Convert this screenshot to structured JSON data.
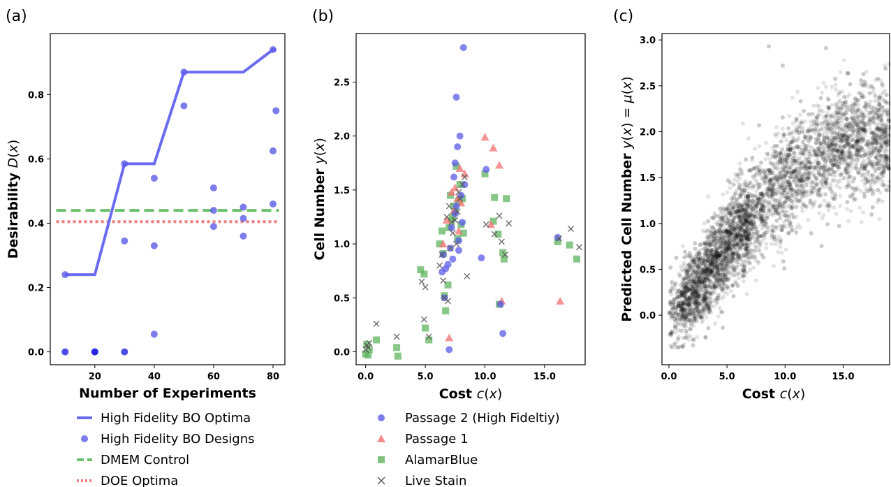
{
  "chart_data": [
    {
      "panel": "(a)",
      "type": "line",
      "xlabel": "Number of Experiments",
      "ylabel": "Desirability D(x)",
      "xlim": [
        5,
        84
      ],
      "ylim": [
        -0.04,
        0.99
      ],
      "xticks": [
        20,
        40,
        60,
        80
      ],
      "yticks": [
        0.0,
        0.2,
        0.4,
        0.6,
        0.8
      ],
      "ytick_labels": [
        "0.0",
        "0.2",
        "0.4",
        "0.6",
        "0.8"
      ],
      "grid": false,
      "legend_position": "below",
      "colors": {
        "bo": "#6b6bf0",
        "dmem": "#6abf6a",
        "doe": "#f08080",
        "bo_point": "#5b5be8",
        "bo_zero": "#1f1fe0"
      },
      "series": [
        {
          "name": "High Fidelity BO Optima",
          "kind": "line",
          "x": [
            10,
            20,
            30,
            40,
            50,
            60,
            70,
            80,
            81
          ],
          "y": [
            0.24,
            0.24,
            0.585,
            0.585,
            0.87,
            0.87,
            0.87,
            0.94,
            0.94
          ]
        },
        {
          "name": "High Fidelity BO Designs",
          "kind": "scatter",
          "x": [
            10,
            10,
            20,
            20,
            30,
            30,
            30,
            40,
            40,
            40,
            50,
            50,
            60,
            60,
            60,
            70,
            70,
            70,
            80,
            80,
            80,
            81
          ],
          "y": [
            0.24,
            0.0,
            0.0,
            0.0,
            0.585,
            0.345,
            0.0,
            0.54,
            0.33,
            0.055,
            0.87,
            0.765,
            0.51,
            0.44,
            0.39,
            0.36,
            0.45,
            0.415,
            0.94,
            0.625,
            0.46,
            0.75
          ]
        },
        {
          "name": "DMEM Control",
          "kind": "hline",
          "x": [
            7,
            82
          ],
          "y": [
            0.44,
            0.44
          ]
        },
        {
          "name": "DOE Optima",
          "kind": "hline",
          "x": [
            7,
            82
          ],
          "y": [
            0.405,
            0.405
          ]
        }
      ]
    },
    {
      "panel": "(b)",
      "type": "scatter",
      "xlabel": "Cost c(x)",
      "ylabel": "Cell Number y(x)",
      "xlim": [
        -0.8,
        18.4
      ],
      "ylim": [
        -0.12,
        2.95
      ],
      "xticks": [
        0.0,
        5.0,
        10.0,
        15.0
      ],
      "xtick_labels": [
        "0.0",
        "5.0",
        "10.0",
        "15.0"
      ],
      "yticks": [
        0.0,
        0.5,
        1.0,
        1.5,
        2.0,
        2.5
      ],
      "ytick_labels": [
        "0.0",
        "0.5",
        "1.0",
        "1.5",
        "2.0",
        "2.5"
      ],
      "grid": false,
      "legend_position": "below",
      "colors": {
        "passage2": "#5b5be8",
        "passage1": "#f07070",
        "alamar": "#5fb45f",
        "live": "#555555"
      },
      "series": [
        {
          "name": "Passage 2 (High Fideltiy)",
          "marker": "circle",
          "x": [
            8.2,
            7.6,
            7.9,
            7.7,
            7.5,
            6.4,
            7.1,
            7.3,
            6.9,
            7.0,
            6.6,
            6.5,
            7.8,
            8.3,
            8.0,
            9.7,
            10.1,
            11.3,
            11.5,
            7.5,
            7.2,
            7.4,
            7.8,
            6.7,
            16.1,
            8.1,
            7.6
          ],
          "y": [
            2.82,
            2.36,
            2.0,
            1.9,
            1.75,
            0.74,
            0.96,
            0.86,
            0.81,
            0.02,
            0.5,
            0.9,
            0.94,
            1.55,
            1.45,
            0.87,
            1.69,
            0.44,
            0.17,
            1.28,
            1.15,
            1.62,
            1.03,
            0.77,
            1.06,
            1.2,
            1.35
          ]
        },
        {
          "name": "Passage 1",
          "marker": "triangle",
          "x": [
            7.9,
            8.3,
            7.5,
            7.2,
            7.7,
            8.0,
            6.5,
            7.0,
            10.0,
            10.7,
            11.2,
            11.4,
            16.3,
            10.5,
            7.4,
            7.8,
            6.8
          ],
          "y": [
            1.7,
            1.65,
            1.52,
            1.48,
            1.42,
            1.38,
            1.0,
            0.13,
            1.99,
            1.89,
            1.73,
            0.47,
            0.47,
            1.18,
            1.31,
            1.12,
            1.22
          ]
        },
        {
          "name": "AlamarBlue",
          "marker": "square",
          "x": [
            0.0,
            0.2,
            0.3,
            0.1,
            0.9,
            2.6,
            2.7,
            4.6,
            4.9,
            5.0,
            5.3,
            6.5,
            6.7,
            6.9,
            7.0,
            7.3,
            7.5,
            7.8,
            8.0,
            7.6,
            7.1,
            7.9,
            8.2,
            6.4,
            6.2,
            6.6,
            7.2,
            7.4,
            7.7,
            8.1,
            10.0,
            10.7,
            11.1,
            11.2,
            11.5,
            11.8,
            16.1,
            17.1,
            17.7,
            10.8,
            11.6
          ],
          "y": [
            -0.02,
            -0.03,
            0.02,
            0.07,
            0.11,
            0.04,
            -0.04,
            0.76,
            0.72,
            0.22,
            0.11,
            0.91,
            0.38,
            0.62,
            1.15,
            1.25,
            1.3,
            1.4,
            1.18,
            1.72,
            1.45,
            1.55,
            1.1,
            1.12,
            1.0,
            0.52,
            1.22,
            1.35,
            1.05,
            1.42,
            1.65,
            1.21,
            1.09,
            0.44,
            0.92,
            1.42,
            1.02,
            0.99,
            0.86,
            1.43,
            0.86
          ]
        },
        {
          "name": "Live Stain",
          "marker": "x",
          "x": [
            0.1,
            0.2,
            0.3,
            0.0,
            0.9,
            2.6,
            4.7,
            5.0,
            4.9,
            5.3,
            6.2,
            6.4,
            6.6,
            6.9,
            7.1,
            7.3,
            7.5,
            7.7,
            7.9,
            8.1,
            8.3,
            7.6,
            7.2,
            6.8,
            8.5,
            10.1,
            10.8,
            11.2,
            11.4,
            11.7,
            12.0,
            16.2,
            17.2,
            17.9,
            6.5,
            7.0,
            7.8
          ],
          "y": [
            0.06,
            0.04,
            0.08,
            0.02,
            0.26,
            0.14,
            0.65,
            0.6,
            0.3,
            0.14,
            0.8,
            0.9,
            0.5,
            0.47,
            0.96,
            1.1,
            1.22,
            1.3,
            1.42,
            1.55,
            1.62,
            1.0,
            1.2,
            1.25,
            0.7,
            1.18,
            1.09,
            1.26,
            1.02,
            0.9,
            1.19,
            1.05,
            1.14,
            0.97,
            0.66,
            1.35,
            1.48
          ]
        }
      ]
    },
    {
      "panel": "(c)",
      "type": "scatter",
      "xlabel": "Cost c(x)",
      "ylabel": "Predicted Cell Number y(x) = μ(x)",
      "xlim": [
        -0.6,
        19.0
      ],
      "ylim": [
        -0.54,
        3.07
      ],
      "xticks": [
        0.0,
        5.0,
        10.0,
        15.0
      ],
      "xtick_labels": [
        "0.0",
        "5.0",
        "10.0",
        "15.0"
      ],
      "yticks": [
        0.0,
        0.5,
        1.0,
        1.5,
        2.0,
        2.5,
        3.0
      ],
      "ytick_labels": [
        "0.0",
        "0.5",
        "1.0",
        "1.5",
        "2.0",
        "2.5",
        "3.0"
      ],
      "grid": false,
      "colors": {
        "points": "#000000"
      },
      "density_profile": {
        "x_range": [
          0.0,
          19.0
        ],
        "mean_curve_x": [
          0.0,
          3.0,
          6.0,
          9.0,
          12.0,
          15.0,
          19.0
        ],
        "mean_curve_y": [
          -0.05,
          0.42,
          0.92,
          1.32,
          1.67,
          1.88,
          1.9
        ],
        "spread": 0.3,
        "notable_points": [
          {
            "x": 8.6,
            "y": 2.93
          },
          {
            "x": 9.8,
            "y": 2.72
          }
        ]
      }
    }
  ],
  "legends": {
    "a": [
      "High Fidelity BO Optima",
      "High Fidelity BO Designs",
      "DMEM Control",
      "DOE Optima"
    ],
    "b": [
      "Passage 2 (High Fideltiy)",
      "Passage 1",
      "AlamarBlue",
      "Live Stain"
    ]
  }
}
